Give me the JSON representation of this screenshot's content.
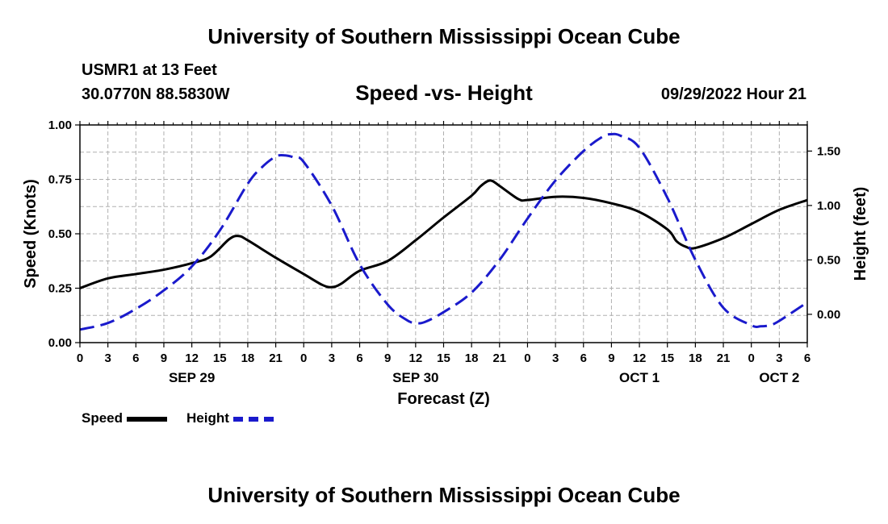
{
  "page": {
    "title_top": "University of Southern Mississippi Ocean Cube",
    "title_bottom": "University of Southern Mississippi Ocean Cube",
    "station": "USMR1 at 13 Feet",
    "coords": "30.0770N  88.5830W",
    "datetime": "09/29/2022 Hour 21"
  },
  "legend": {
    "speed_label": "Speed",
    "height_label": "Height"
  },
  "chart_data": {
    "type": "line",
    "title": "Speed -vs- Height",
    "xlabel": "Forecast (Z)",
    "ylabel": "Speed (Knots)",
    "y2label": "Height (feet)",
    "x_unit": "hours from Sep 29 00Z",
    "xlim": [
      0,
      78
    ],
    "ylim": [
      0,
      1
    ],
    "y2lim": [
      -0.26,
      1.74
    ],
    "grid": true,
    "x_tick_values": [
      0,
      3,
      6,
      9,
      12,
      15,
      18,
      21,
      24,
      27,
      30,
      33,
      36,
      39,
      42,
      45,
      48,
      51,
      54,
      57,
      60,
      63,
      66,
      69,
      72,
      75,
      78
    ],
    "x_tick_labels": [
      "0",
      "3",
      "6",
      "9",
      "12",
      "15",
      "18",
      "21",
      "0",
      "3",
      "6",
      "9",
      "12",
      "15",
      "18",
      "21",
      "0",
      "3",
      "6",
      "9",
      "12",
      "15",
      "18",
      "21",
      "0",
      "3",
      "6"
    ],
    "y_ticks": [
      {
        "value": 0,
        "label": "0.00"
      },
      {
        "value": 0.25,
        "label": "0.25"
      },
      {
        "value": 0.5,
        "label": "0.50"
      },
      {
        "value": 0.75,
        "label": "0.75"
      },
      {
        "value": 1,
        "label": "1.00"
      }
    ],
    "y2_ticks": [
      {
        "value": 0,
        "label": "0.00"
      },
      {
        "value": 0.5,
        "label": "0.50"
      },
      {
        "value": 1,
        "label": "1.00"
      },
      {
        "value": 1.5,
        "label": "1.50"
      }
    ],
    "date_labels": [
      {
        "x": 12,
        "label": "SEP 29"
      },
      {
        "x": 36,
        "label": "SEP 30"
      },
      {
        "x": 60,
        "label": "OCT 1"
      },
      {
        "x": 75,
        "label": "OCT 2"
      }
    ],
    "series": [
      {
        "name": "Speed",
        "axis": "left",
        "color": "#000000",
        "style": "solid",
        "x": [
          0,
          3,
          6,
          9,
          12,
          14,
          16,
          17,
          18,
          21,
          24,
          26,
          27,
          28,
          30,
          33,
          36,
          39,
          42,
          43,
          44,
          45,
          47,
          48,
          51,
          54,
          57,
          60,
          63,
          64,
          65,
          66,
          69,
          72,
          75,
          78
        ],
        "y": [
          0.25,
          0.295,
          0.315,
          0.335,
          0.365,
          0.395,
          0.475,
          0.49,
          0.47,
          0.39,
          0.315,
          0.265,
          0.255,
          0.27,
          0.33,
          0.375,
          0.47,
          0.575,
          0.675,
          0.72,
          0.745,
          0.72,
          0.66,
          0.655,
          0.67,
          0.665,
          0.64,
          0.6,
          0.52,
          0.465,
          0.44,
          0.435,
          0.48,
          0.545,
          0.61,
          0.655
        ]
      },
      {
        "name": "Height",
        "axis": "right",
        "color": "#1a1acc",
        "style": "dashed",
        "x": [
          0,
          3,
          6,
          9,
          12,
          15,
          18,
          19.5,
          21,
          22,
          23,
          24,
          27,
          30,
          33,
          35,
          36,
          37,
          39,
          42,
          45,
          48,
          51,
          54,
          56,
          57,
          58,
          60,
          63,
          66,
          69,
          72,
          73,
          74,
          75,
          78
        ],
        "y": [
          -0.14,
          -0.08,
          0.05,
          0.22,
          0.44,
          0.77,
          1.2,
          1.35,
          1.45,
          1.46,
          1.44,
          1.4,
          1.0,
          0.46,
          0.09,
          -0.05,
          -0.08,
          -0.07,
          0.02,
          0.2,
          0.5,
          0.88,
          1.23,
          1.5,
          1.63,
          1.655,
          1.64,
          1.53,
          1.07,
          0.5,
          0.06,
          -0.1,
          -0.11,
          -0.1,
          -0.06,
          0.11
        ]
      }
    ]
  }
}
